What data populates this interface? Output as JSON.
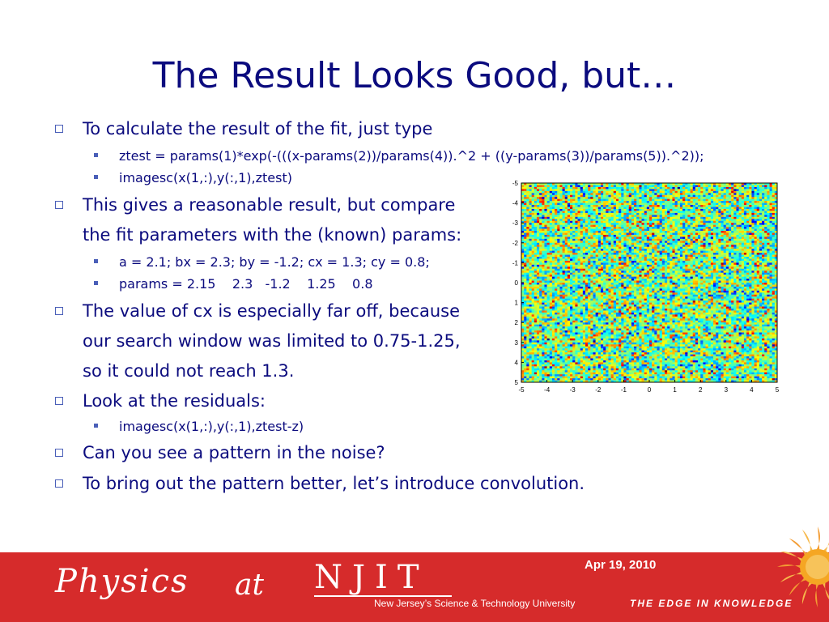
{
  "title": "The Result Looks Good, but…",
  "bullets": {
    "b1": "To calculate the result of the fit, just type",
    "b1_sub1": "ztest = params(1)*exp(-(((x-params(2))/params(4)).^2 + ((y-params(3))/params(5)).^2));",
    "b1_sub2": "imagesc(x(1,:),y(:,1),ztest)",
    "b2_line1": "This gives a reasonable result, but compare",
    "b2_line2": "the fit parameters with the (known) params:",
    "b2_sub1": "a = 2.1; bx = 2.3; by = -1.2; cx = 1.3; cy = 0.8;",
    "b2_sub2": "params = 2.15    2.3   -1.2    1.25    0.8",
    "b3_line1": "The value of cx is especially far off, because",
    "b3_line2": "our search window was limited to 0.75-1.25,",
    "b3_line3": "so it could not reach 1.3.",
    "b4": "Look at the residuals:",
    "b4_sub1": "imagesc(x(1,:),y(:,1),ztest-z)",
    "b5": "Can you see a pattern in the noise?",
    "b6": "To bring out the pattern better, let’s introduce convolution."
  },
  "chart_data": {
    "type": "heatmap",
    "title": "",
    "xlabel": "",
    "ylabel": "",
    "x_ticks": [
      "-5",
      "-4",
      "-3",
      "-2",
      "-1",
      "0",
      "1",
      "2",
      "3",
      "4",
      "5"
    ],
    "y_ticks": [
      "-5",
      "-4",
      "-3",
      "-2",
      "-1",
      "0",
      "1",
      "2",
      "3",
      "4",
      "5"
    ],
    "xlim": [
      -5,
      5
    ],
    "ylim": [
      -5,
      5
    ],
    "y_direction": "reversed",
    "grid": false,
    "colormap": "jet",
    "values_note_visible": false,
    "cells_per_axis": 100
  },
  "footer": {
    "physics": "Physics",
    "at": "at",
    "njit": "NJIT",
    "njit_subtitle": "New Jersey’s Science & Technology University",
    "date": "Apr 19, 2010",
    "tagline": "THE EDGE IN KNOWLEDGE",
    "bg_color": "#d62b2b"
  }
}
